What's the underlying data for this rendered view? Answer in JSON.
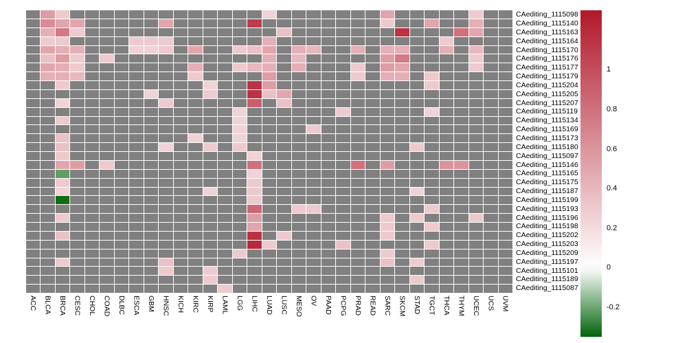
{
  "figure": {
    "background": "#ffffff",
    "gridline_color": "#ffffff"
  },
  "chart_data": {
    "type": "heatmap",
    "title": "",
    "xlabel": "",
    "ylabel": "",
    "legend_position": "right",
    "grid": true,
    "columns": [
      "ACC",
      "BLCA",
      "BRCA",
      "CESC",
      "CHOL",
      "COAD",
      "DLBC",
      "ESCA",
      "GBM",
      "HNSC",
      "KICH",
      "KIRC",
      "KIRP",
      "LAML",
      "LGG",
      "LIHC",
      "LUAD",
      "LUSC",
      "MESO",
      "OV",
      "PAAD",
      "PCPG",
      "PRAD",
      "READ",
      "SARC",
      "SKCM",
      "STAD",
      "TGCT",
      "THCA",
      "THYM",
      "UCEC",
      "UCS",
      "UVM"
    ],
    "rows": [
      "CAediting_1115098",
      "CAediting_1115140",
      "CAediting_1115163",
      "CAediting_1115164",
      "CAediting_1115170",
      "CAediting_1115176",
      "CAediting_1115177",
      "CAediting_1115179",
      "CAediting_1115204",
      "CAediting_1115205",
      "CAediting_1115207",
      "CAediting_1115119",
      "CAediting_1115134",
      "CAediting_1115169",
      "CAediting_1115173",
      "CAediting_1115180",
      "CAediting_1115097",
      "CAediting_1115146",
      "CAediting_1115165",
      "CAediting_1115175",
      "CAediting_1115187",
      "CAediting_1115199",
      "CAediting_1115193",
      "CAediting_1115196",
      "CAediting_1115198",
      "CAediting_1115202",
      "CAediting_1115203",
      "CAediting_1115209",
      "CAediting_1115197",
      "CAediting_1115101",
      "CAediting_1115189",
      "CAediting_1115087"
    ],
    "cells_format": [
      "row",
      "col",
      "value"
    ],
    "na_note": "gray cells are NA (no value shown)",
    "cells": [
      [
        "CAediting_1115098",
        "BLCA",
        0.55
      ],
      [
        "CAediting_1115098",
        "BRCA",
        0.3
      ],
      [
        "CAediting_1115098",
        "LUAD",
        0.25
      ],
      [
        "CAediting_1115098",
        "SARC",
        0.5
      ],
      [
        "CAediting_1115098",
        "UCEC",
        0.3
      ],
      [
        "CAediting_1115140",
        "BLCA",
        0.65
      ],
      [
        "CAediting_1115140",
        "BRCA",
        0.5
      ],
      [
        "CAediting_1115140",
        "CESC",
        0.5
      ],
      [
        "CAediting_1115140",
        "HNSC",
        0.5
      ],
      [
        "CAediting_1115140",
        "LIHC",
        1.1
      ],
      [
        "CAediting_1115140",
        "SARC",
        0.3
      ],
      [
        "CAediting_1115140",
        "TGCT",
        0.5
      ],
      [
        "CAediting_1115140",
        "UCEC",
        0.45
      ],
      [
        "CAediting_1115163",
        "BLCA",
        0.45
      ],
      [
        "CAediting_1115163",
        "BRCA",
        0.75
      ],
      [
        "CAediting_1115163",
        "CESC",
        0.3
      ],
      [
        "CAediting_1115163",
        "LUSC",
        0.35
      ],
      [
        "CAediting_1115163",
        "SKCM",
        1.15
      ],
      [
        "CAediting_1115163",
        "THYM",
        0.8
      ],
      [
        "CAediting_1115163",
        "UCEC",
        0.5
      ],
      [
        "CAediting_1115164",
        "BLCA",
        0.3
      ],
      [
        "CAediting_1115164",
        "BRCA",
        0.3
      ],
      [
        "CAediting_1115164",
        "ESCA",
        0.3
      ],
      [
        "CAediting_1115164",
        "GBM",
        0.3
      ],
      [
        "CAediting_1115164",
        "HNSC",
        0.3
      ],
      [
        "CAediting_1115164",
        "LUAD",
        0.45
      ],
      [
        "CAediting_1115164",
        "THCA",
        0.3
      ],
      [
        "CAediting_1115170",
        "BLCA",
        0.5
      ],
      [
        "CAediting_1115170",
        "BRCA",
        0.45
      ],
      [
        "CAediting_1115170",
        "CESC",
        0.45
      ],
      [
        "CAediting_1115170",
        "ESCA",
        0.25
      ],
      [
        "CAediting_1115170",
        "GBM",
        0.25
      ],
      [
        "CAediting_1115170",
        "HNSC",
        0.3
      ],
      [
        "CAediting_1115170",
        "KIRC",
        0.5
      ],
      [
        "CAediting_1115170",
        "LGG",
        0.3
      ],
      [
        "CAediting_1115170",
        "LIHC",
        0.35
      ],
      [
        "CAediting_1115170",
        "LUAD",
        0.5
      ],
      [
        "CAediting_1115170",
        "MESO",
        0.45
      ],
      [
        "CAediting_1115170",
        "OV",
        0.4
      ],
      [
        "CAediting_1115170",
        "PRAD",
        0.45
      ],
      [
        "CAediting_1115170",
        "SARC",
        0.45
      ],
      [
        "CAediting_1115170",
        "SKCM",
        0.45
      ],
      [
        "CAediting_1115170",
        "THCA",
        0.45
      ],
      [
        "CAediting_1115170",
        "UCEC",
        0.4
      ],
      [
        "CAediting_1115176",
        "BLCA",
        0.35
      ],
      [
        "CAediting_1115176",
        "BRCA",
        0.55
      ],
      [
        "CAediting_1115176",
        "CESC",
        0.3
      ],
      [
        "CAediting_1115176",
        "COAD",
        0.3
      ],
      [
        "CAediting_1115176",
        "LUAD",
        0.45
      ],
      [
        "CAediting_1115176",
        "MESO",
        0.4
      ],
      [
        "CAediting_1115176",
        "SARC",
        0.55
      ],
      [
        "CAediting_1115176",
        "SKCM",
        0.75
      ],
      [
        "CAediting_1115176",
        "UCEC",
        0.3
      ],
      [
        "CAediting_1115177",
        "BLCA",
        0.5
      ],
      [
        "CAediting_1115177",
        "BRCA",
        0.45
      ],
      [
        "CAediting_1115177",
        "CESC",
        0.3
      ],
      [
        "CAediting_1115177",
        "KIRC",
        0.45
      ],
      [
        "CAediting_1115177",
        "LGG",
        0.3
      ],
      [
        "CAediting_1115177",
        "LIHC",
        0.4
      ],
      [
        "CAediting_1115177",
        "LUAD",
        0.45
      ],
      [
        "CAediting_1115177",
        "MESO",
        0.45
      ],
      [
        "CAediting_1115177",
        "PRAD",
        0.3
      ],
      [
        "CAediting_1115177",
        "SARC",
        0.55
      ],
      [
        "CAediting_1115177",
        "SKCM",
        0.5
      ],
      [
        "CAediting_1115177",
        "UCEC",
        0.3
      ],
      [
        "CAediting_1115179",
        "BLCA",
        0.45
      ],
      [
        "CAediting_1115179",
        "BRCA",
        0.45
      ],
      [
        "CAediting_1115179",
        "CESC",
        0.4
      ],
      [
        "CAediting_1115179",
        "KIRC",
        0.3
      ],
      [
        "CAediting_1115179",
        "LUAD",
        0.55
      ],
      [
        "CAediting_1115179",
        "PRAD",
        0.3
      ],
      [
        "CAediting_1115179",
        "SARC",
        0.45
      ],
      [
        "CAediting_1115179",
        "SKCM",
        0.45
      ],
      [
        "CAediting_1115179",
        "TGCT",
        0.3
      ],
      [
        "CAediting_1115204",
        "BRCA",
        0.3
      ],
      [
        "CAediting_1115204",
        "KIRP",
        0.25
      ],
      [
        "CAediting_1115204",
        "LIHC",
        1.15
      ],
      [
        "CAediting_1115204",
        "LUAD",
        0.55
      ],
      [
        "CAediting_1115204",
        "TGCT",
        0.3
      ],
      [
        "CAediting_1115205",
        "GBM",
        0.25
      ],
      [
        "CAediting_1115205",
        "KIRP",
        0.3
      ],
      [
        "CAediting_1115205",
        "LIHC",
        1.15
      ],
      [
        "CAediting_1115205",
        "LUAD",
        0.35
      ],
      [
        "CAediting_1115205",
        "LUSC",
        0.5
      ],
      [
        "CAediting_1115207",
        "BRCA",
        0.25
      ],
      [
        "CAediting_1115207",
        "HNSC",
        0.3
      ],
      [
        "CAediting_1115207",
        "LIHC",
        0.9
      ],
      [
        "CAediting_1115207",
        "LUSC",
        0.35
      ],
      [
        "CAediting_1115119",
        "LGG",
        0.25
      ],
      [
        "CAediting_1115119",
        "PCPG",
        0.3
      ],
      [
        "CAediting_1115119",
        "TGCT",
        0.25
      ],
      [
        "CAediting_1115134",
        "BRCA",
        0.3
      ],
      [
        "CAediting_1115134",
        "LGG",
        0.25
      ],
      [
        "CAediting_1115169",
        "LGG",
        0.25
      ],
      [
        "CAediting_1115169",
        "OV",
        0.3
      ],
      [
        "CAediting_1115173",
        "BRCA",
        0.35
      ],
      [
        "CAediting_1115173",
        "KIRC",
        0.25
      ],
      [
        "CAediting_1115173",
        "LGG",
        0.25
      ],
      [
        "CAediting_1115180",
        "BRCA",
        0.35
      ],
      [
        "CAediting_1115180",
        "HNSC",
        0.25
      ],
      [
        "CAediting_1115180",
        "KIRP",
        0.3
      ],
      [
        "CAediting_1115180",
        "LGG",
        0.3
      ],
      [
        "CAediting_1115180",
        "STAD",
        0.3
      ],
      [
        "CAediting_1115097",
        "BRCA",
        0.3
      ],
      [
        "CAediting_1115097",
        "LIHC",
        0.25
      ],
      [
        "CAediting_1115146",
        "BRCA",
        0.5
      ],
      [
        "CAediting_1115146",
        "CESC",
        0.55
      ],
      [
        "CAediting_1115146",
        "COAD",
        0.3
      ],
      [
        "CAediting_1115146",
        "LIHC",
        0.8
      ],
      [
        "CAediting_1115146",
        "PRAD",
        0.8
      ],
      [
        "CAediting_1115146",
        "SARC",
        0.55
      ],
      [
        "CAediting_1115146",
        "THCA",
        0.6
      ],
      [
        "CAediting_1115146",
        "THYM",
        0.6
      ],
      [
        "CAediting_1115165",
        "BRCA",
        -0.22
      ],
      [
        "CAediting_1115165",
        "LIHC",
        0.25
      ],
      [
        "CAediting_1115175",
        "BRCA",
        0.3
      ],
      [
        "CAediting_1115175",
        "LIHC",
        0.3
      ],
      [
        "CAediting_1115187",
        "BRCA",
        0.25
      ],
      [
        "CAediting_1115187",
        "KIRP",
        0.25
      ],
      [
        "CAediting_1115187",
        "LIHC",
        0.3
      ],
      [
        "CAediting_1115187",
        "STAD",
        0.25
      ],
      [
        "CAediting_1115199",
        "BRCA",
        -0.33
      ],
      [
        "CAediting_1115199",
        "LIHC",
        0.3
      ],
      [
        "CAediting_1115193",
        "LIHC",
        0.85
      ],
      [
        "CAediting_1115193",
        "MESO",
        0.3
      ],
      [
        "CAediting_1115193",
        "OV",
        0.3
      ],
      [
        "CAediting_1115193",
        "TGCT",
        0.3
      ],
      [
        "CAediting_1115196",
        "BRCA",
        0.3
      ],
      [
        "CAediting_1115196",
        "LIHC",
        0.55
      ],
      [
        "CAediting_1115196",
        "SARC",
        0.3
      ],
      [
        "CAediting_1115196",
        "STAD",
        0.3
      ],
      [
        "CAediting_1115196",
        "UCEC",
        0.3
      ],
      [
        "CAediting_1115198",
        "LIHC",
        0.5
      ],
      [
        "CAediting_1115198",
        "SARC",
        0.3
      ],
      [
        "CAediting_1115198",
        "TGCT",
        0.3
      ],
      [
        "CAediting_1115202",
        "BRCA",
        0.35
      ],
      [
        "CAediting_1115202",
        "LIHC",
        1.15
      ],
      [
        "CAediting_1115202",
        "LUSC",
        0.3
      ],
      [
        "CAediting_1115202",
        "SARC",
        0.3
      ],
      [
        "CAediting_1115203",
        "LIHC",
        1.2
      ],
      [
        "CAediting_1115203",
        "LUAD",
        0.3
      ],
      [
        "CAediting_1115203",
        "PCPG",
        0.35
      ],
      [
        "CAediting_1115203",
        "TGCT",
        0.3
      ],
      [
        "CAediting_1115209",
        "LGG",
        0.3
      ],
      [
        "CAediting_1115209",
        "SARC",
        0.3
      ],
      [
        "CAediting_1115197",
        "BRCA",
        0.3
      ],
      [
        "CAediting_1115197",
        "HNSC",
        0.35
      ],
      [
        "CAediting_1115197",
        "SARC",
        0.35
      ],
      [
        "CAediting_1115197",
        "STAD",
        0.3
      ],
      [
        "CAediting_1115101",
        "HNSC",
        0.3
      ],
      [
        "CAediting_1115101",
        "KIRP",
        0.3
      ],
      [
        "CAediting_1115189",
        "KIRP",
        0.3
      ],
      [
        "CAediting_1115189",
        "STAD",
        0.3
      ],
      [
        "CAediting_1115087",
        "LAML",
        0.3
      ]
    ],
    "colorscale": {
      "type": "diverging",
      "positive_color": "#b2182b",
      "zero_color": "#ffffff",
      "negative_color": "#00640a",
      "na_color": "#808080",
      "domain_max": 1.3,
      "domain_min": -0.35
    },
    "legend": {
      "ticks": [
        {
          "label": "1",
          "value": 1
        },
        {
          "label": "0.8",
          "value": 0.8
        },
        {
          "label": "0.6",
          "value": 0.6
        },
        {
          "label": "0.4",
          "value": 0.4
        },
        {
          "label": "0.2",
          "value": 0.2
        },
        {
          "label": "0",
          "value": 0
        },
        {
          "label": "-0.2",
          "value": -0.2
        }
      ]
    }
  }
}
